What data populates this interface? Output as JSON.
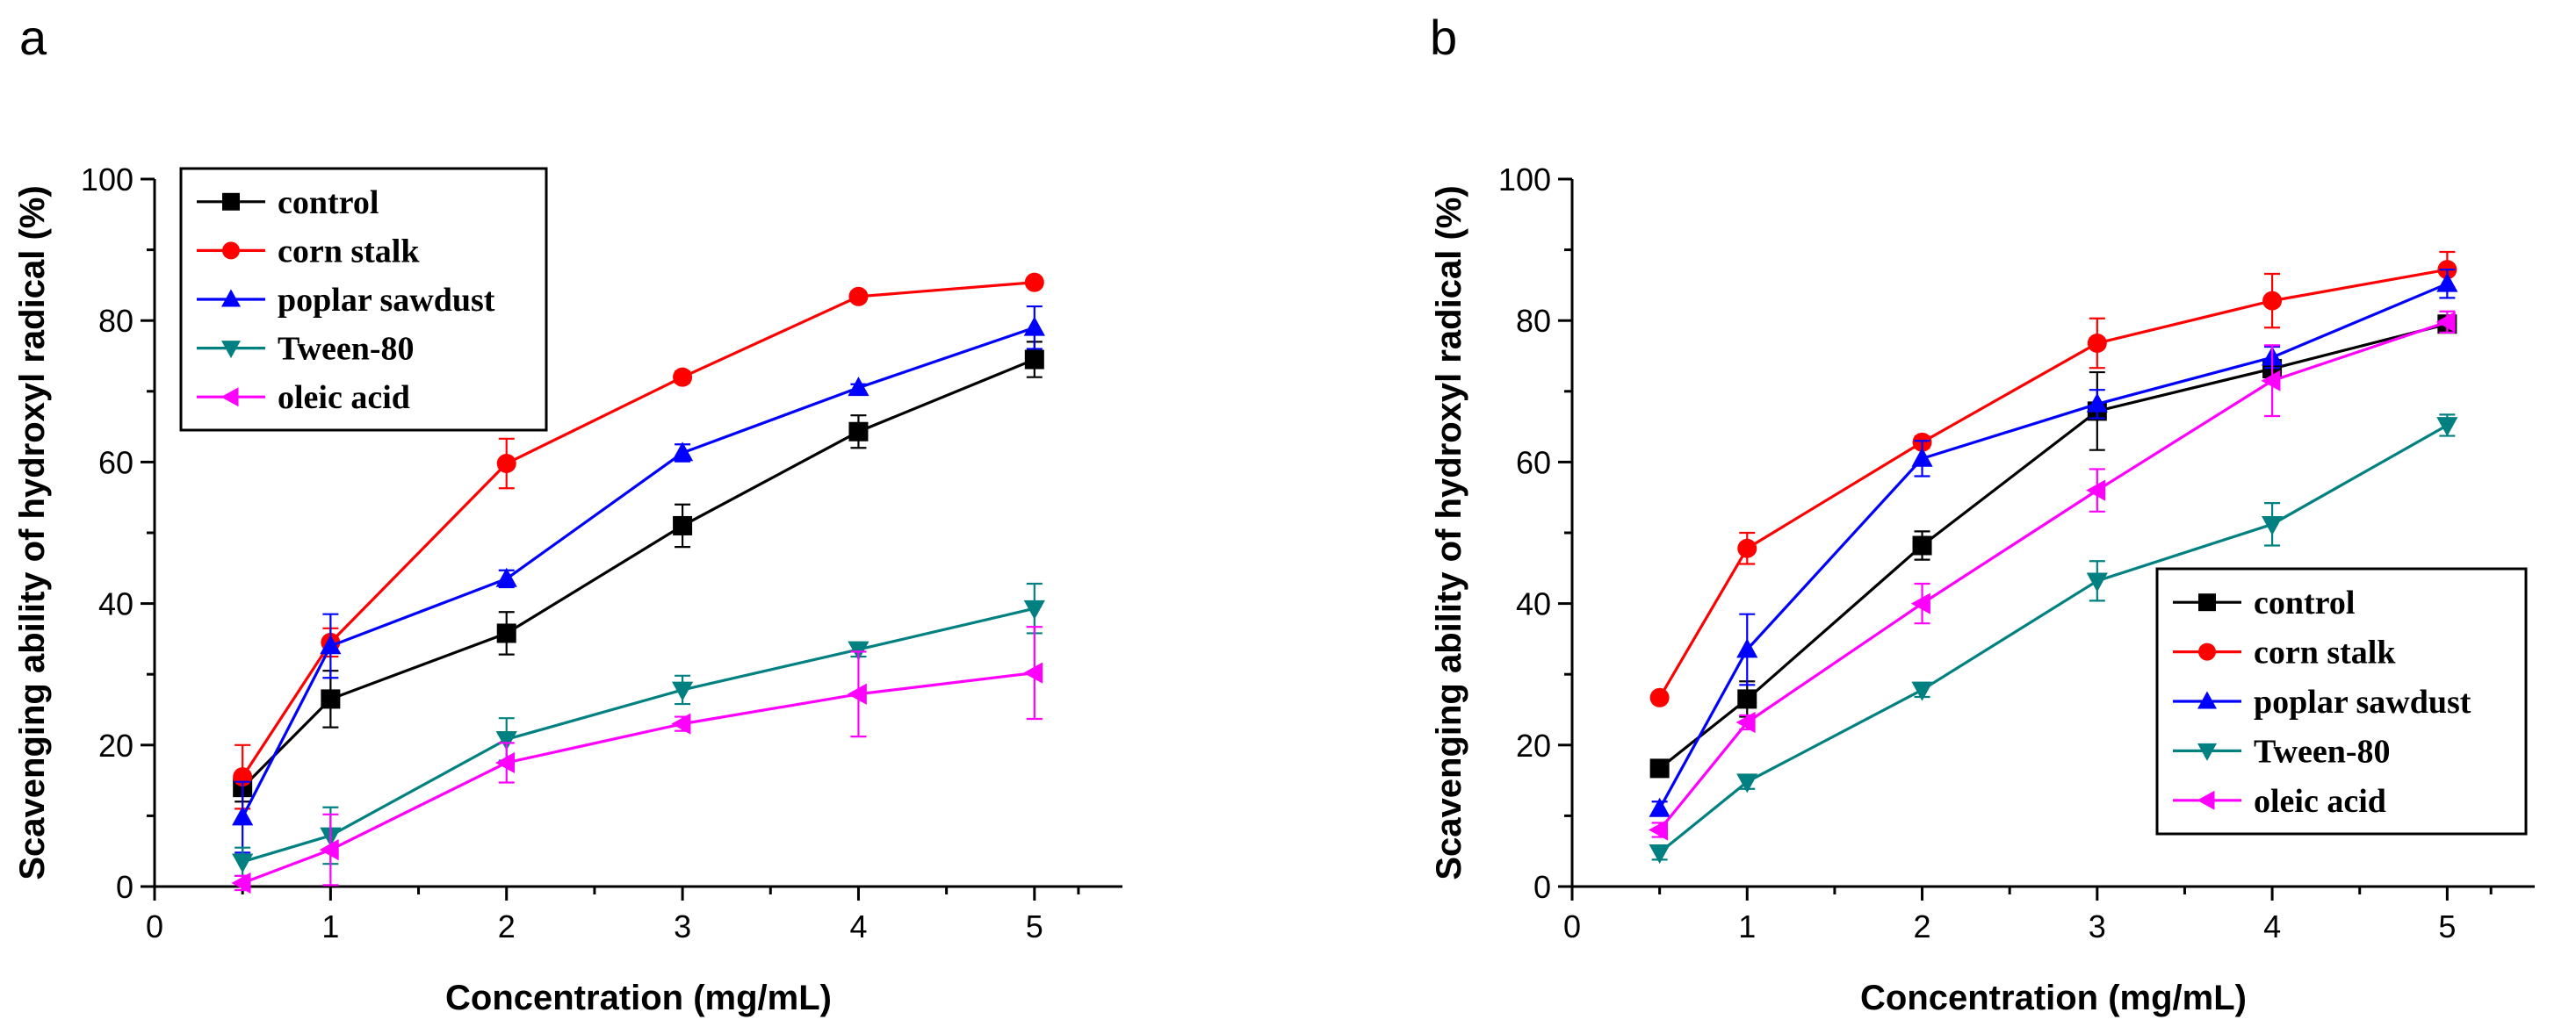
{
  "chart_data": [
    {
      "type": "line",
      "panel_label": "a",
      "xlabel": "Concentration (mg/mL)",
      "ylabel": "Scavenging ability of hydroxyl radical (%)",
      "xlim": [
        0,
        5.5
      ],
      "ylim": [
        0,
        100
      ],
      "xticks": [
        0,
        1,
        2,
        3,
        4,
        5
      ],
      "yticks": [
        0,
        20,
        40,
        60,
        80,
        100
      ],
      "legend_position": "top-left",
      "x": [
        0.5,
        1,
        2,
        3,
        4,
        5
      ],
      "series": [
        {
          "name": "control",
          "color": "#000000",
          "marker": "square",
          "values": [
            14,
            26.5,
            35.8,
            51,
            64.3,
            74.5
          ],
          "errors": [
            2,
            4,
            3,
            3,
            2.3,
            2.5
          ]
        },
        {
          "name": "corn stalk",
          "color": "#ff0000",
          "marker": "circle",
          "values": [
            15.5,
            34.5,
            59.8,
            72,
            83.4,
            85.4
          ],
          "errors": [
            4.5,
            2,
            3.5,
            0.8,
            0.7,
            0.5
          ]
        },
        {
          "name": "poplar sawdust",
          "color": "#0000ff",
          "marker": "triangle-up",
          "values": [
            9.8,
            34,
            43.5,
            61.3,
            70.5,
            79
          ],
          "errors": [
            5,
            4.5,
            1.2,
            1.2,
            0.5,
            3
          ]
        },
        {
          "name": "Tween-80",
          "color": "#008080",
          "marker": "triangle-down",
          "values": [
            3.5,
            7.2,
            20.8,
            27.8,
            33.5,
            39.3
          ],
          "errors": [
            2,
            4,
            3,
            2,
            1,
            3.5
          ]
        },
        {
          "name": "oleic acid",
          "color": "#ff00ff",
          "marker": "triangle-left",
          "values": [
            0.5,
            5.2,
            17.5,
            23,
            27.2,
            30.2
          ],
          "errors": [
            1,
            5,
            2.8,
            1,
            6,
            6.5
          ]
        }
      ]
    },
    {
      "type": "line",
      "panel_label": "b",
      "xlabel": "Concentration (mg/mL)",
      "ylabel": "Scavenging ability of hydroxyl radical (%)",
      "xlim": [
        0,
        5.5
      ],
      "ylim": [
        0,
        100
      ],
      "xticks": [
        0,
        1,
        2,
        3,
        4,
        5
      ],
      "yticks": [
        0,
        20,
        40,
        60,
        80,
        100
      ],
      "legend_position": "bottom-right",
      "x": [
        0.5,
        1,
        2,
        3,
        4,
        5
      ],
      "series": [
        {
          "name": "control",
          "color": "#000000",
          "marker": "square",
          "values": [
            16.7,
            26.5,
            48.2,
            67.2,
            73.2,
            79.5
          ],
          "errors": [
            1,
            2.5,
            2,
            5.5,
            1,
            1
          ]
        },
        {
          "name": "corn stalk",
          "color": "#ff0000",
          "marker": "circle",
          "values": [
            26.7,
            47.8,
            62.8,
            76.8,
            82.8,
            87.2
          ],
          "errors": [
            0.6,
            2.2,
            0.8,
            3.5,
            3.8,
            2.5
          ]
        },
        {
          "name": "poplar sawdust",
          "color": "#0000ff",
          "marker": "triangle-up",
          "values": [
            11,
            33.5,
            60.5,
            68.2,
            74.8,
            85.2
          ],
          "errors": [
            1,
            5,
            2.5,
            2,
            1.5,
            2
          ]
        },
        {
          "name": "Tween-80",
          "color": "#008080",
          "marker": "triangle-down",
          "values": [
            4.8,
            14.8,
            27.8,
            43.2,
            51.2,
            65.2
          ],
          "errors": [
            1,
            1,
            1,
            2.8,
            3,
            1.5
          ]
        },
        {
          "name": "oleic acid",
          "color": "#ff00ff",
          "marker": "triangle-left",
          "values": [
            8,
            23.2,
            40,
            56,
            71.5,
            79.8
          ],
          "errors": [
            1,
            1,
            2.8,
            3,
            5,
            1.5
          ]
        }
      ]
    }
  ]
}
